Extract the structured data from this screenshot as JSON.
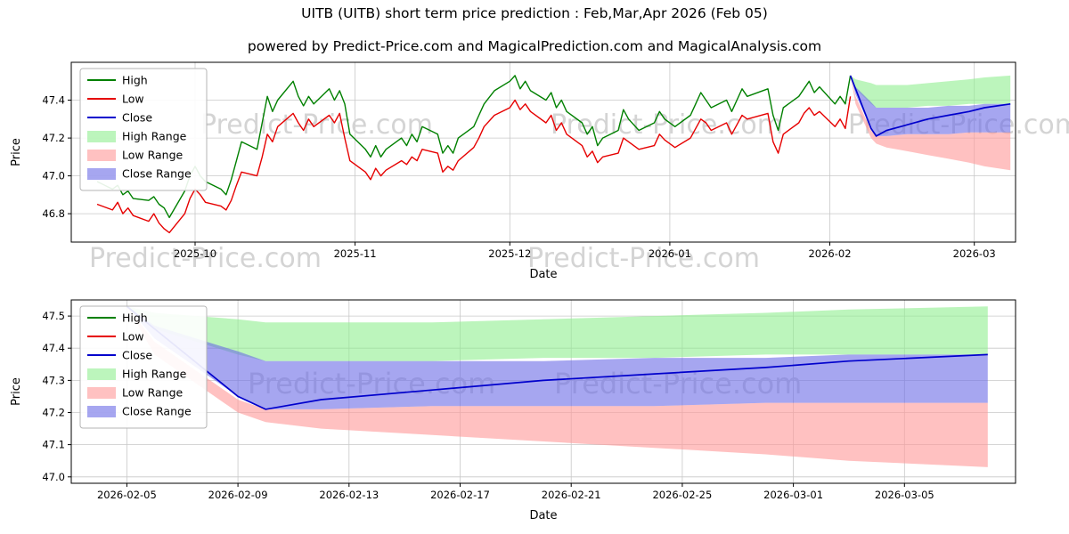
{
  "page": {
    "watermark": "Predict-Price.com"
  },
  "colors": {
    "high": "#008000",
    "low": "#e60000",
    "close": "#0000cc",
    "high_range": "#90ee90",
    "low_range": "#ff9898",
    "close_range": "#6a6ae6",
    "grid": "#c8c8c8",
    "watermark": "#d4d4d4"
  },
  "legend": [
    {
      "label": "High",
      "swatch": "line",
      "colorKey": "high"
    },
    {
      "label": "Low",
      "swatch": "line",
      "colorKey": "low"
    },
    {
      "label": "Close",
      "swatch": "line",
      "colorKey": "close"
    },
    {
      "label": "High Range",
      "swatch": "patch",
      "colorKey": "high_range"
    },
    {
      "label": "Low Range",
      "swatch": "patch",
      "colorKey": "low_range"
    },
    {
      "label": "Close Range",
      "swatch": "patch",
      "colorKey": "close_range"
    }
  ],
  "chart_data": [
    {
      "name": "overview",
      "type": "line",
      "title": "UITB (UITB) short term price prediction : Feb,Mar,Apr 2026 (Feb 05)",
      "subtitle": "powered by Predict-Price.com and MagicalPrediction.com and MagicalAnalysis.com",
      "xlabel": "Date",
      "ylabel": "Price",
      "grid": true,
      "legend_position": "upper left",
      "xlim": [
        "2025-09-07",
        "2026-03-09"
      ],
      "ylim": [
        46.65,
        47.6
      ],
      "yticks": [
        46.8,
        47.0,
        47.2,
        47.4
      ],
      "ytick_labels": [
        "46.8",
        "47.0",
        "47.2",
        "47.4"
      ],
      "xticks": [
        {
          "date": "2025-10-01",
          "label": "2025-10"
        },
        {
          "date": "2025-11-01",
          "label": "2025-11"
        },
        {
          "date": "2025-12-01",
          "label": "2025-12"
        },
        {
          "date": "2026-01-01",
          "label": "2026-01"
        },
        {
          "date": "2026-02-01",
          "label": "2026-02"
        },
        {
          "date": "2026-03-01",
          "label": "2026-03"
        }
      ],
      "history": {
        "dates": [
          "2025-09-12",
          "2025-09-15",
          "2025-09-16",
          "2025-09-17",
          "2025-09-18",
          "2025-09-19",
          "2025-09-22",
          "2025-09-23",
          "2025-09-24",
          "2025-09-25",
          "2025-09-26",
          "2025-09-29",
          "2025-09-30",
          "2025-10-01",
          "2025-10-02",
          "2025-10-03",
          "2025-10-06",
          "2025-10-07",
          "2025-10-08",
          "2025-10-09",
          "2025-10-10",
          "2025-10-13",
          "2025-10-14",
          "2025-10-15",
          "2025-10-16",
          "2025-10-17",
          "2025-10-20",
          "2025-10-21",
          "2025-10-22",
          "2025-10-23",
          "2025-10-24",
          "2025-10-27",
          "2025-10-28",
          "2025-10-29",
          "2025-10-30",
          "2025-10-31",
          "2025-11-03",
          "2025-11-04",
          "2025-11-05",
          "2025-11-06",
          "2025-11-07",
          "2025-11-10",
          "2025-11-11",
          "2025-11-12",
          "2025-11-13",
          "2025-11-14",
          "2025-11-17",
          "2025-11-18",
          "2025-11-19",
          "2025-11-20",
          "2025-11-21",
          "2025-11-24",
          "2025-11-25",
          "2025-11-26",
          "2025-11-28",
          "2025-12-01",
          "2025-12-02",
          "2025-12-03",
          "2025-12-04",
          "2025-12-05",
          "2025-12-08",
          "2025-12-09",
          "2025-12-10",
          "2025-12-11",
          "2025-12-12",
          "2025-12-15",
          "2025-12-16",
          "2025-12-17",
          "2025-12-18",
          "2025-12-19",
          "2025-12-22",
          "2025-12-23",
          "2025-12-24",
          "2025-12-26",
          "2025-12-29",
          "2025-12-30",
          "2025-12-31",
          "2026-01-02",
          "2026-01-05",
          "2026-01-06",
          "2026-01-07",
          "2026-01-08",
          "2026-01-09",
          "2026-01-12",
          "2026-01-13",
          "2026-01-14",
          "2026-01-15",
          "2026-01-16",
          "2026-01-20",
          "2026-01-21",
          "2026-01-22",
          "2026-01-23",
          "2026-01-26",
          "2026-01-27",
          "2026-01-28",
          "2026-01-29",
          "2026-01-30",
          "2026-02-02",
          "2026-02-03",
          "2026-02-04",
          "2026-02-05"
        ],
        "high": [
          46.97,
          46.93,
          46.95,
          46.9,
          46.92,
          46.88,
          46.87,
          46.89,
          46.85,
          46.83,
          46.78,
          46.92,
          47.0,
          47.05,
          47.0,
          46.97,
          46.93,
          46.9,
          46.98,
          47.08,
          47.18,
          47.14,
          47.28,
          47.42,
          47.34,
          47.4,
          47.5,
          47.42,
          47.37,
          47.42,
          47.38,
          47.46,
          47.4,
          47.45,
          47.38,
          47.22,
          47.14,
          47.1,
          47.16,
          47.1,
          47.14,
          47.2,
          47.16,
          47.22,
          47.18,
          47.26,
          47.22,
          47.12,
          47.16,
          47.12,
          47.2,
          47.26,
          47.32,
          47.38,
          47.45,
          47.5,
          47.53,
          47.46,
          47.5,
          47.45,
          47.4,
          47.44,
          47.36,
          47.4,
          47.34,
          47.28,
          47.22,
          47.26,
          47.16,
          47.2,
          47.24,
          47.35,
          47.3,
          47.24,
          47.28,
          47.34,
          47.3,
          47.26,
          47.32,
          47.38,
          47.44,
          47.4,
          47.36,
          47.4,
          47.34,
          47.4,
          47.46,
          47.42,
          47.46,
          47.32,
          47.24,
          47.36,
          47.42,
          47.46,
          47.5,
          47.44,
          47.47,
          47.38,
          47.42,
          47.38,
          47.53
        ],
        "low": [
          46.85,
          46.82,
          46.86,
          46.8,
          46.83,
          46.79,
          46.76,
          46.8,
          46.75,
          46.72,
          46.7,
          46.8,
          46.88,
          46.93,
          46.9,
          46.86,
          46.84,
          46.82,
          46.87,
          46.95,
          47.02,
          47.0,
          47.1,
          47.22,
          47.18,
          47.26,
          47.33,
          47.28,
          47.24,
          47.3,
          47.26,
          47.32,
          47.28,
          47.33,
          47.2,
          47.08,
          47.02,
          46.98,
          47.04,
          47.0,
          47.03,
          47.08,
          47.06,
          47.1,
          47.08,
          47.14,
          47.12,
          47.02,
          47.05,
          47.03,
          47.08,
          47.15,
          47.2,
          47.26,
          47.32,
          47.36,
          47.4,
          47.35,
          47.38,
          47.34,
          47.28,
          47.32,
          47.24,
          47.28,
          47.22,
          47.16,
          47.1,
          47.13,
          47.07,
          47.1,
          47.12,
          47.2,
          47.18,
          47.14,
          47.16,
          47.22,
          47.19,
          47.15,
          47.2,
          47.25,
          47.3,
          47.28,
          47.24,
          47.28,
          47.22,
          47.27,
          47.32,
          47.3,
          47.33,
          47.18,
          47.12,
          47.22,
          47.28,
          47.33,
          47.36,
          47.32,
          47.34,
          47.26,
          47.3,
          47.25,
          47.42
        ]
      },
      "forecast": {
        "dates": [
          "2026-02-05",
          "2026-02-06",
          "2026-02-09",
          "2026-02-10",
          "2026-02-12",
          "2026-02-16",
          "2026-02-20",
          "2026-02-24",
          "2026-02-28",
          "2026-03-03",
          "2026-03-08"
        ],
        "close": [
          47.53,
          47.46,
          47.25,
          47.21,
          47.24,
          47.27,
          47.3,
          47.32,
          47.34,
          47.36,
          47.38
        ],
        "high_range": {
          "top": [
            47.53,
            47.51,
            47.49,
            47.48,
            47.48,
            47.48,
            47.49,
            47.5,
            47.51,
            47.52,
            47.53
          ],
          "bottom": [
            47.53,
            47.46,
            47.38,
            47.36,
            47.36,
            47.36,
            47.37,
            47.37,
            47.38,
            47.38,
            47.38
          ]
        },
        "close_range": {
          "top": [
            47.53,
            47.47,
            47.39,
            47.36,
            47.36,
            47.36,
            47.36,
            47.37,
            47.37,
            47.38,
            47.38
          ],
          "bottom": [
            47.53,
            47.43,
            47.25,
            47.21,
            47.21,
            47.22,
            47.22,
            47.22,
            47.23,
            47.23,
            47.23
          ]
        },
        "low_range": {
          "top": [
            47.53,
            47.42,
            47.24,
            47.21,
            47.21,
            47.22,
            47.22,
            47.22,
            47.23,
            47.23,
            47.23
          ],
          "bottom": [
            47.53,
            47.38,
            47.2,
            47.17,
            47.15,
            47.13,
            47.11,
            47.09,
            47.07,
            47.05,
            47.03
          ]
        }
      }
    },
    {
      "name": "forecast-zoom",
      "type": "line",
      "title": "",
      "subtitle": "",
      "xlabel": "Date",
      "ylabel": "Price",
      "grid": true,
      "legend_position": "upper left",
      "xlim": [
        "2026-02-03",
        "2026-03-09"
      ],
      "ylim": [
        46.98,
        47.55
      ],
      "yticks": [
        47.0,
        47.1,
        47.2,
        47.3,
        47.4,
        47.5
      ],
      "ytick_labels": [
        "47.0",
        "47.1",
        "47.2",
        "47.3",
        "47.4",
        "47.5"
      ],
      "xticks": [
        {
          "date": "2026-02-05",
          "label": "2026-02-05"
        },
        {
          "date": "2026-02-09",
          "label": "2026-02-09"
        },
        {
          "date": "2026-02-13",
          "label": "2026-02-13"
        },
        {
          "date": "2026-02-17",
          "label": "2026-02-17"
        },
        {
          "date": "2026-02-21",
          "label": "2026-02-21"
        },
        {
          "date": "2026-02-25",
          "label": "2026-02-25"
        },
        {
          "date": "2026-03-01",
          "label": "2026-03-01"
        },
        {
          "date": "2026-03-05",
          "label": "2026-03-05"
        }
      ],
      "history": null,
      "forecast": {
        "dates": [
          "2026-02-05",
          "2026-02-06",
          "2026-02-09",
          "2026-02-10",
          "2026-02-12",
          "2026-02-16",
          "2026-02-20",
          "2026-02-24",
          "2026-02-28",
          "2026-03-03",
          "2026-03-08"
        ],
        "close": [
          47.53,
          47.46,
          47.25,
          47.21,
          47.24,
          47.27,
          47.3,
          47.32,
          47.34,
          47.36,
          47.38
        ],
        "high_range": {
          "top": [
            47.53,
            47.51,
            47.49,
            47.48,
            47.48,
            47.48,
            47.49,
            47.5,
            47.51,
            47.52,
            47.53
          ],
          "bottom": [
            47.53,
            47.46,
            47.38,
            47.36,
            47.36,
            47.36,
            47.37,
            47.37,
            47.38,
            47.38,
            47.38
          ]
        },
        "close_range": {
          "top": [
            47.53,
            47.47,
            47.39,
            47.36,
            47.36,
            47.36,
            47.36,
            47.37,
            47.37,
            47.38,
            47.38
          ],
          "bottom": [
            47.53,
            47.43,
            47.25,
            47.21,
            47.21,
            47.22,
            47.22,
            47.22,
            47.23,
            47.23,
            47.23
          ]
        },
        "low_range": {
          "top": [
            47.53,
            47.42,
            47.24,
            47.21,
            47.21,
            47.22,
            47.22,
            47.22,
            47.23,
            47.23,
            47.23
          ],
          "bottom": [
            47.53,
            47.38,
            47.2,
            47.17,
            47.15,
            47.13,
            47.11,
            47.09,
            47.07,
            47.05,
            47.03
          ]
        }
      }
    }
  ]
}
